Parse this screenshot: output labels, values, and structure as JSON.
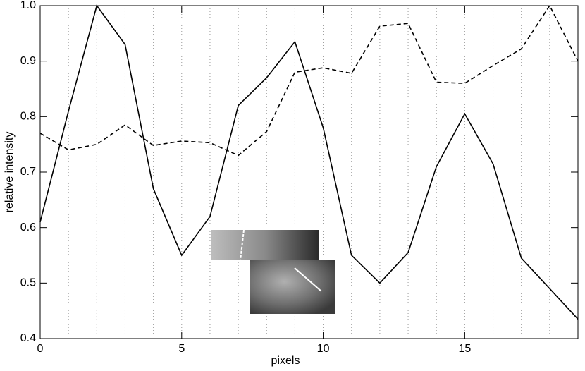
{
  "chart_data": {
    "type": "line",
    "xlabel": "pixels",
    "ylabel": "relative intensity",
    "x": [
      0,
      1,
      2,
      3,
      4,
      5,
      6,
      7,
      8,
      9,
      10,
      11,
      12,
      13,
      14,
      15,
      16,
      17,
      18,
      19
    ],
    "series": [
      {
        "color": "#000000",
        "dashed": false,
        "values": [
          0.61,
          0.81,
          1.0,
          0.93,
          0.67,
          0.55,
          0.62,
          0.82,
          0.87,
          0.935,
          0.78,
          0.55,
          0.5,
          0.555,
          0.71,
          0.805,
          0.715,
          0.545,
          0.49,
          0.435
        ]
      },
      {
        "color": "#000000",
        "dashed": true,
        "values": [
          0.77,
          0.74,
          0.75,
          0.785,
          0.748,
          0.756,
          0.753,
          0.73,
          0.773,
          0.88,
          0.888,
          0.878,
          0.963,
          0.968,
          0.862,
          0.86,
          0.892,
          0.922,
          1.0,
          0.9
        ]
      }
    ],
    "xlim": [
      0,
      19
    ],
    "xticks": [
      0,
      5,
      10,
      15
    ],
    "minor_xticks": [
      1,
      2,
      3,
      4,
      5,
      6,
      7,
      8,
      9,
      10,
      11,
      12,
      13,
      14,
      15,
      16,
      17,
      18
    ],
    "ylim": [
      0.4,
      1.0
    ],
    "yticks": [
      0.4,
      0.5,
      0.6,
      0.7,
      0.8,
      0.9,
      {
        "value": 1,
        "label": "1.0"
      }
    ],
    "grid": true
  }
}
